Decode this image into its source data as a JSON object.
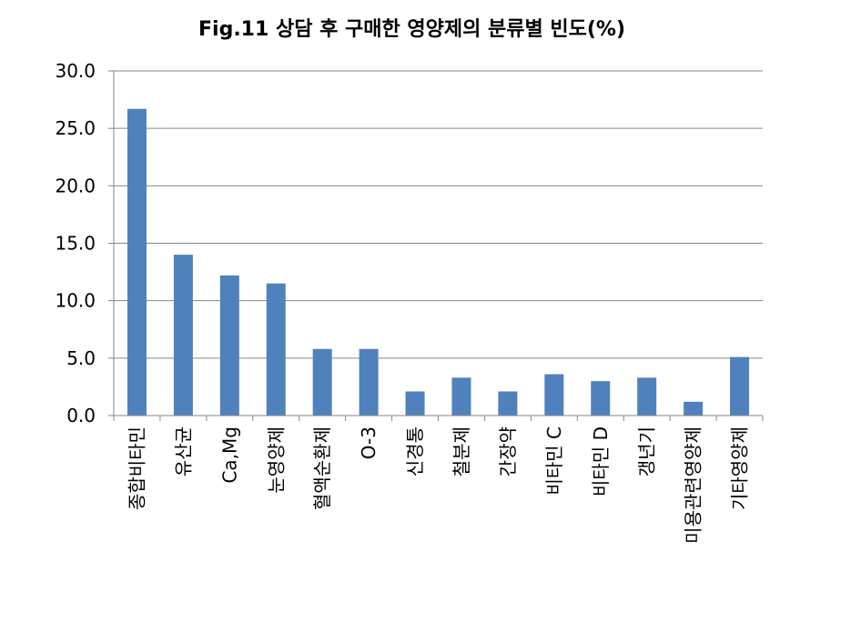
{
  "chart_data": {
    "type": "bar",
    "title": "Fig.11 상담 후 구매한 영양제의 분류별 빈도(%)",
    "xlabel": "",
    "ylabel": "",
    "ylim": [
      0,
      30
    ],
    "yticks": [
      "0.0",
      "5.0",
      "10.0",
      "15.0",
      "20.0",
      "25.0",
      "30.0"
    ],
    "grid": true,
    "legend": "none",
    "bar_color": "#4f81bd",
    "categories": [
      "종합비타민",
      "유산균",
      "Ca,Mg",
      "눈영양제",
      "혈액순환제",
      "O-3",
      "신경통",
      "철분제",
      "간장약",
      "비타민 C",
      "비타민 D",
      "갱년기",
      "미용관련영양제",
      "기타영양제"
    ],
    "values": [
      26.7,
      14.0,
      12.2,
      11.5,
      5.8,
      5.8,
      2.1,
      3.3,
      2.1,
      3.6,
      3.0,
      3.3,
      1.2,
      5.1
    ]
  }
}
